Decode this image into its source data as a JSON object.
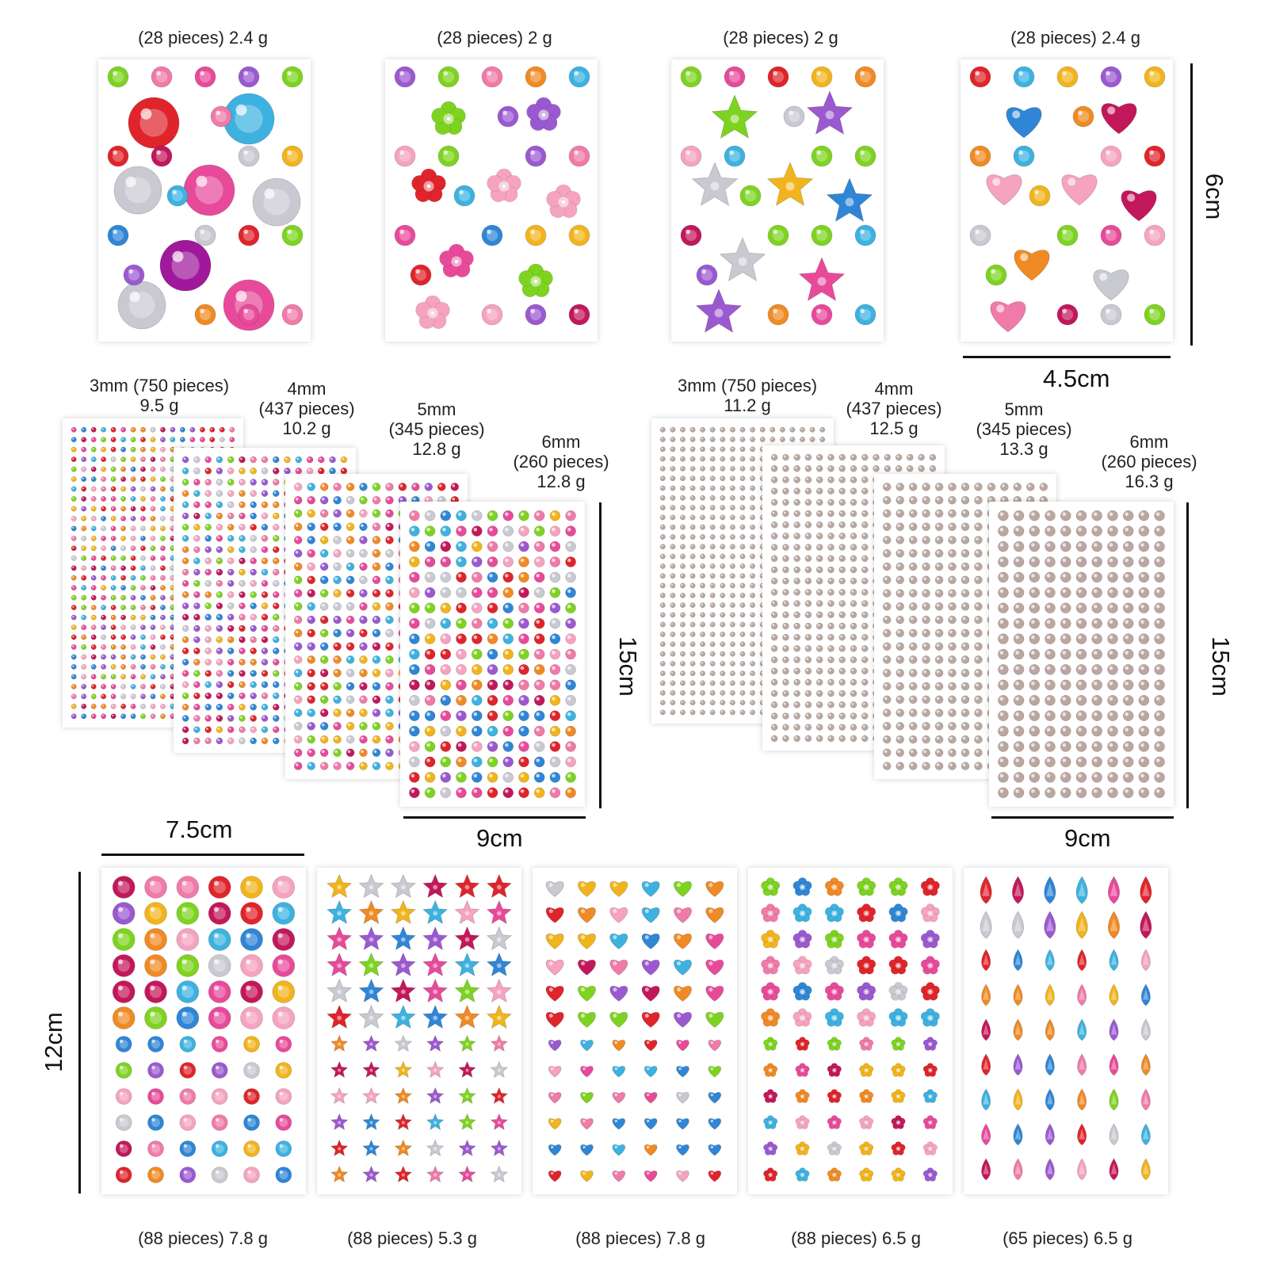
{
  "top_row": {
    "labels": [
      "(28 pieces) 2.4 g",
      "(28 pieces) 2 g",
      "(28 pieces) 2 g",
      "(28 pieces) 2.4 g"
    ],
    "sheet_kinds": [
      "mixed-round-gems",
      "flowers-and-rounds",
      "stars-and-rounds",
      "hearts-and-rounds"
    ],
    "height_dimension": "6cm",
    "width_dimension": "4.5cm"
  },
  "middle_colored": {
    "sheets": [
      {
        "size": "3mm",
        "pieces": "(750 pieces)",
        "weight": "9.5 g",
        "combined": "3mm (750 pieces)"
      },
      {
        "size": "4mm",
        "pieces": "(437 pieces)",
        "weight": "10.2 g"
      },
      {
        "size": "5mm",
        "pieces": "(345 pieces)",
        "weight": "12.8 g"
      },
      {
        "size": "6mm",
        "pieces": "(260 pieces)",
        "weight": "12.8 g"
      }
    ],
    "height_dimension": "15cm",
    "width_dimension": "9cm"
  },
  "middle_clear": {
    "sheets": [
      {
        "size": "3mm",
        "pieces": "(750 pieces)",
        "weight": "11.2 g",
        "combined": "3mm (750 pieces)"
      },
      {
        "size": "4mm",
        "pieces": "(437 pieces)",
        "weight": "12.5 g"
      },
      {
        "size": "5mm",
        "pieces": "(345 pieces)",
        "weight": "13.3 g"
      },
      {
        "size": "6mm",
        "pieces": "(260 pieces)",
        "weight": "16.3 g"
      }
    ],
    "height_dimension": "15cm",
    "width_dimension": "9cm"
  },
  "bottom_row": {
    "labels": [
      "(88 pieces) 7.8 g",
      "(88 pieces) 5.3 g",
      "(88 pieces) 7.8 g",
      "(88 pieces) 6.5 g",
      "(65 pieces) 6.5 g"
    ],
    "sheet_kinds": [
      "round-gems",
      "stars",
      "hearts",
      "flowers",
      "teardrops"
    ],
    "width_dimension": "7.5cm",
    "height_dimension": "12cm"
  },
  "gem_colors": [
    "#e0242b",
    "#e84a9a",
    "#9b59d0",
    "#3db2e0",
    "#f2b41c",
    "#7ed321",
    "#f07aa8",
    "#c9c9d2",
    "#f08a24",
    "#2f86d6",
    "#c2185b",
    "#f5a3c0"
  ],
  "clear_gem_color": "#b9a8a0"
}
